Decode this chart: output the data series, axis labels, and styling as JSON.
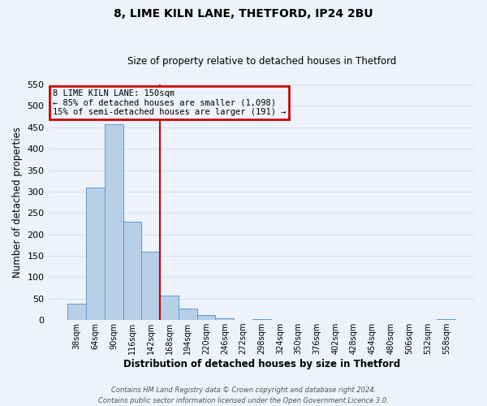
{
  "title": "8, LIME KILN LANE, THETFORD, IP24 2BU",
  "subtitle": "Size of property relative to detached houses in Thetford",
  "xlabel": "Distribution of detached houses by size in Thetford",
  "ylabel": "Number of detached properties",
  "bar_labels": [
    "38sqm",
    "64sqm",
    "90sqm",
    "116sqm",
    "142sqm",
    "168sqm",
    "194sqm",
    "220sqm",
    "246sqm",
    "272sqm",
    "298sqm",
    "324sqm",
    "350sqm",
    "376sqm",
    "402sqm",
    "428sqm",
    "454sqm",
    "480sqm",
    "506sqm",
    "532sqm",
    "558sqm"
  ],
  "bar_values": [
    38,
    310,
    457,
    229,
    160,
    57,
    26,
    12,
    5,
    0,
    3,
    0,
    0,
    0,
    0,
    0,
    0,
    0,
    0,
    0,
    3
  ],
  "bar_color": "#b8cfe8",
  "bar_edge_color": "#5b9bd5",
  "vline_index": 5,
  "vline_color": "#cc0000",
  "ylim_max": 550,
  "yticks": [
    0,
    50,
    100,
    150,
    200,
    250,
    300,
    350,
    400,
    450,
    500,
    550
  ],
  "annotation_title": "8 LIME KILN LANE: 150sqm",
  "annotation_line1": "← 85% of detached houses are smaller (1,098)",
  "annotation_line2": "15% of semi-detached houses are larger (191) →",
  "annotation_box_color": "#cc0000",
  "footer_line1": "Contains HM Land Registry data © Crown copyright and database right 2024.",
  "footer_line2": "Contains public sector information licensed under the Open Government Licence 3.0.",
  "background_color": "#eef2fb",
  "grid_color": "#d8e0f0",
  "title_fontsize": 10,
  "subtitle_fontsize": 8.5
}
